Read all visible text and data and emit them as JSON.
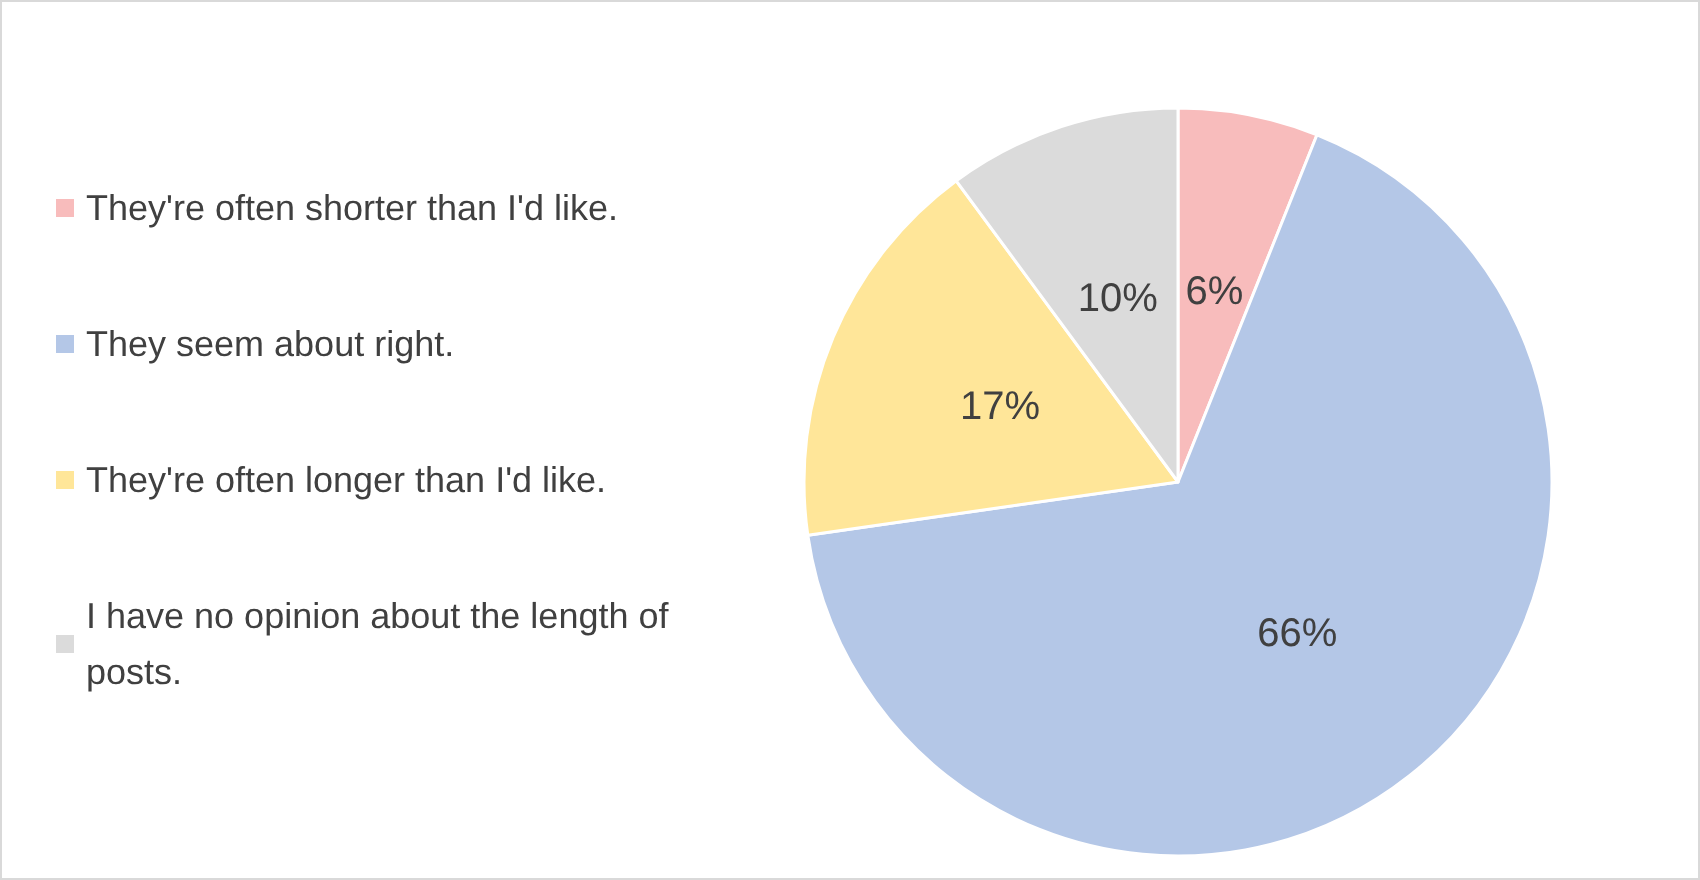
{
  "chart_data": {
    "type": "pie",
    "categories": [
      "They're often shorter than I'd like.",
      "They seem about right.",
      "They're often longer than I'd like.",
      "I have no opinion about the length of posts."
    ],
    "values": [
      6,
      66,
      17,
      10
    ],
    "colors": [
      "#f8bcbc",
      "#b4c7e7",
      "#ffe699",
      "#dbdbdb"
    ],
    "value_labels": [
      "6%",
      "66%",
      "17%",
      "10%"
    ],
    "legend": "left"
  }
}
